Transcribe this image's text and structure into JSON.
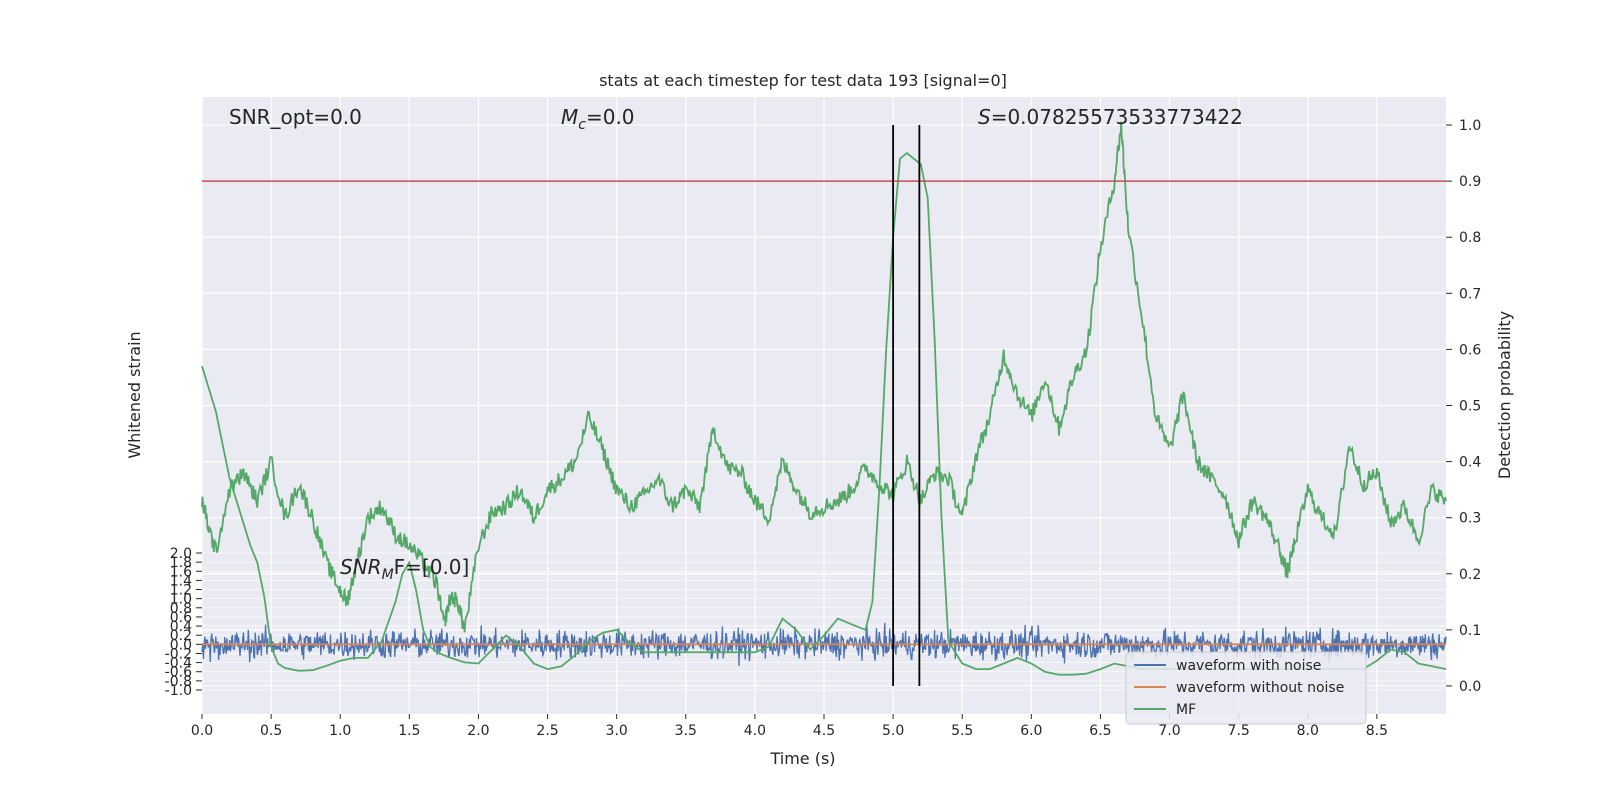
{
  "chart_data": {
    "type": "line",
    "title": "stats at each timestep for test data 193 [signal=0]",
    "xlabel": "Time (s)",
    "ylabel_left": "Whitened strain",
    "ylabel_right": "Detection probability",
    "xlim": [
      0.0,
      9.0
    ],
    "xticks": [
      "0.0",
      "0.5",
      "1.0",
      "1.5",
      "2.0",
      "2.5",
      "3.0",
      "3.5",
      "4.0",
      "4.5",
      "5.0",
      "5.5",
      "6.0",
      "6.5",
      "7.0",
      "7.5",
      "8.0",
      "8.5"
    ],
    "right_ylim": [
      -0.05,
      1.05
    ],
    "right_yticks": [
      "0.0",
      "0.1",
      "0.2",
      "0.3",
      "0.4",
      "0.5",
      "0.6",
      "0.7",
      "0.8",
      "0.9",
      "1.0"
    ],
    "left_ylim": [
      -1.0,
      2.0
    ],
    "left_yticks": [
      "-1.0",
      "-0.8",
      "-0.6",
      "-0.4",
      "-0.2",
      "0.0",
      "0.2",
      "0.4",
      "0.6",
      "0.8",
      "1.0",
      "1.2",
      "1.4",
      "1.6",
      "1.8",
      "2.0"
    ],
    "threshold": 0.9,
    "vlines": [
      5.0,
      5.19
    ],
    "annotations": {
      "snr_opt": "SNR_opt=0.0",
      "mc": "=0.0",
      "mc_symbol": "M",
      "mc_sub": "c",
      "s": "=0.07825573533773422",
      "s_symbol": "S",
      "snr_mf_symbol": "SNR",
      "snr_mf_sub": "M",
      "snr_mf": "F=[0.0]"
    },
    "legend": {
      "position": "lower right",
      "entries": [
        "waveform with noise",
        "waveform without noise",
        "MF"
      ]
    },
    "series": [
      {
        "name": "waveform with noise",
        "axis": "left",
        "noise_std": 0.16,
        "mean": 0.0
      },
      {
        "name": "waveform without noise",
        "axis": "left",
        "values_constant": 0.0
      },
      {
        "name": "MF",
        "axis": "right",
        "x": [
          0,
          0.1,
          0.2,
          0.3,
          0.35,
          0.4,
          0.45,
          0.5,
          0.55,
          0.6,
          0.7,
          0.8,
          0.9,
          1.0,
          1.1,
          1.2,
          1.3,
          1.4,
          1.45,
          1.5,
          1.55,
          1.6,
          1.65,
          1.7,
          1.8,
          1.9,
          2.0,
          2.1,
          2.2,
          2.3,
          2.4,
          2.5,
          2.6,
          2.7,
          2.8,
          2.9,
          3.0,
          3.1,
          3.2,
          3.3,
          3.4,
          3.5,
          3.6,
          3.7,
          3.8,
          3.9,
          4.0,
          4.1,
          4.2,
          4.3,
          4.4,
          4.5,
          4.6,
          4.7,
          4.8,
          4.85,
          4.9,
          4.95,
          5.0,
          5.05,
          5.1,
          5.15,
          5.2,
          5.25,
          5.3,
          5.35,
          5.4,
          5.5,
          5.6,
          5.7,
          5.8,
          5.9,
          6.0,
          6.1,
          6.2,
          6.3,
          6.4,
          6.5,
          6.6,
          6.7,
          6.8,
          6.9,
          7.0,
          7.1,
          7.2,
          7.3,
          7.4,
          7.5,
          7.6,
          7.7,
          7.8,
          7.9,
          8.0,
          8.1,
          8.2,
          8.3,
          8.4,
          8.5,
          8.6,
          8.7,
          8.8,
          8.9,
          9.0
        ],
        "values": [
          0.57,
          0.49,
          0.37,
          0.29,
          0.25,
          0.22,
          0.16,
          0.07,
          0.04,
          0.032,
          0.027,
          0.028,
          0.036,
          0.045,
          0.05,
          0.05,
          0.08,
          0.15,
          0.2,
          0.22,
          0.17,
          0.1,
          0.07,
          0.06,
          0.05,
          0.042,
          0.04,
          0.065,
          0.09,
          0.07,
          0.04,
          0.03,
          0.035,
          0.055,
          0.08,
          0.095,
          0.1,
          0.075,
          0.06,
          0.06,
          0.06,
          0.06,
          0.06,
          0.06,
          0.06,
          0.06,
          0.06,
          0.07,
          0.12,
          0.1,
          0.065,
          0.09,
          0.12,
          0.11,
          0.1,
          0.15,
          0.35,
          0.6,
          0.8,
          0.94,
          0.95,
          0.94,
          0.93,
          0.87,
          0.62,
          0.3,
          0.08,
          0.04,
          0.03,
          0.03,
          0.04,
          0.05,
          0.04,
          0.025,
          0.02,
          0.02,
          0.022,
          0.03,
          0.04,
          0.035,
          0.03,
          0.03,
          0.03,
          0.03,
          0.03,
          0.03,
          0.03,
          0.03,
          0.03,
          0.03,
          0.03,
          0.03,
          0.03,
          0.03,
          0.03,
          0.03,
          0.03,
          0.045,
          0.065,
          0.06,
          0.04,
          0.035,
          0.03
        ]
      },
      {
        "name": "",
        "axis": "right",
        "description_free": true,
        "x": [
          0,
          0.05,
          0.1,
          0.2,
          0.3,
          0.4,
          0.5,
          0.6,
          0.7,
          0.8,
          0.9,
          1.0,
          1.05,
          1.1,
          1.2,
          1.3,
          1.4,
          1.5,
          1.6,
          1.7,
          1.75,
          1.8,
          1.85,
          1.9,
          2.0,
          2.1,
          2.2,
          2.3,
          2.4,
          2.5,
          2.6,
          2.7,
          2.8,
          2.9,
          3.0,
          3.1,
          3.2,
          3.3,
          3.4,
          3.5,
          3.6,
          3.7,
          3.8,
          3.9,
          4.0,
          4.1,
          4.2,
          4.3,
          4.4,
          4.5,
          4.6,
          4.7,
          4.8,
          4.9,
          5.0,
          5.1,
          5.2,
          5.3,
          5.4,
          5.5,
          5.6,
          5.7,
          5.8,
          5.9,
          6.0,
          6.1,
          6.2,
          6.3,
          6.4,
          6.5,
          6.6,
          6.65,
          6.7,
          6.8,
          6.9,
          7.0,
          7.1,
          7.2,
          7.3,
          7.4,
          7.5,
          7.6,
          7.7,
          7.8,
          7.85,
          7.9,
          8.0,
          8.1,
          8.2,
          8.3,
          8.4,
          8.5,
          8.6,
          8.7,
          8.8,
          8.9,
          9.0
        ],
        "values": [
          0.33,
          0.28,
          0.24,
          0.35,
          0.38,
          0.33,
          0.4,
          0.3,
          0.36,
          0.3,
          0.22,
          0.17,
          0.15,
          0.2,
          0.3,
          0.32,
          0.27,
          0.25,
          0.22,
          0.18,
          0.11,
          0.16,
          0.15,
          0.1,
          0.25,
          0.31,
          0.32,
          0.35,
          0.3,
          0.35,
          0.37,
          0.4,
          0.48,
          0.42,
          0.35,
          0.32,
          0.34,
          0.37,
          0.32,
          0.35,
          0.32,
          0.46,
          0.39,
          0.38,
          0.33,
          0.3,
          0.4,
          0.35,
          0.31,
          0.32,
          0.33,
          0.35,
          0.39,
          0.36,
          0.34,
          0.4,
          0.33,
          0.38,
          0.37,
          0.3,
          0.41,
          0.48,
          0.59,
          0.52,
          0.48,
          0.55,
          0.46,
          0.55,
          0.6,
          0.78,
          0.9,
          1.0,
          0.82,
          0.66,
          0.48,
          0.42,
          0.52,
          0.4,
          0.37,
          0.34,
          0.26,
          0.33,
          0.3,
          0.24,
          0.2,
          0.25,
          0.35,
          0.3,
          0.27,
          0.43,
          0.36,
          0.38,
          0.29,
          0.32,
          0.26,
          0.35,
          0.33
        ]
      }
    ],
    "colors": {
      "noise": "#4c72b0",
      "clean": "#dd8452",
      "mf": "#55a868",
      "threshold": "#c44e52",
      "vline": "#000000",
      "plot_bg": "#eaeaf2",
      "grid": "#ffffff"
    }
  }
}
